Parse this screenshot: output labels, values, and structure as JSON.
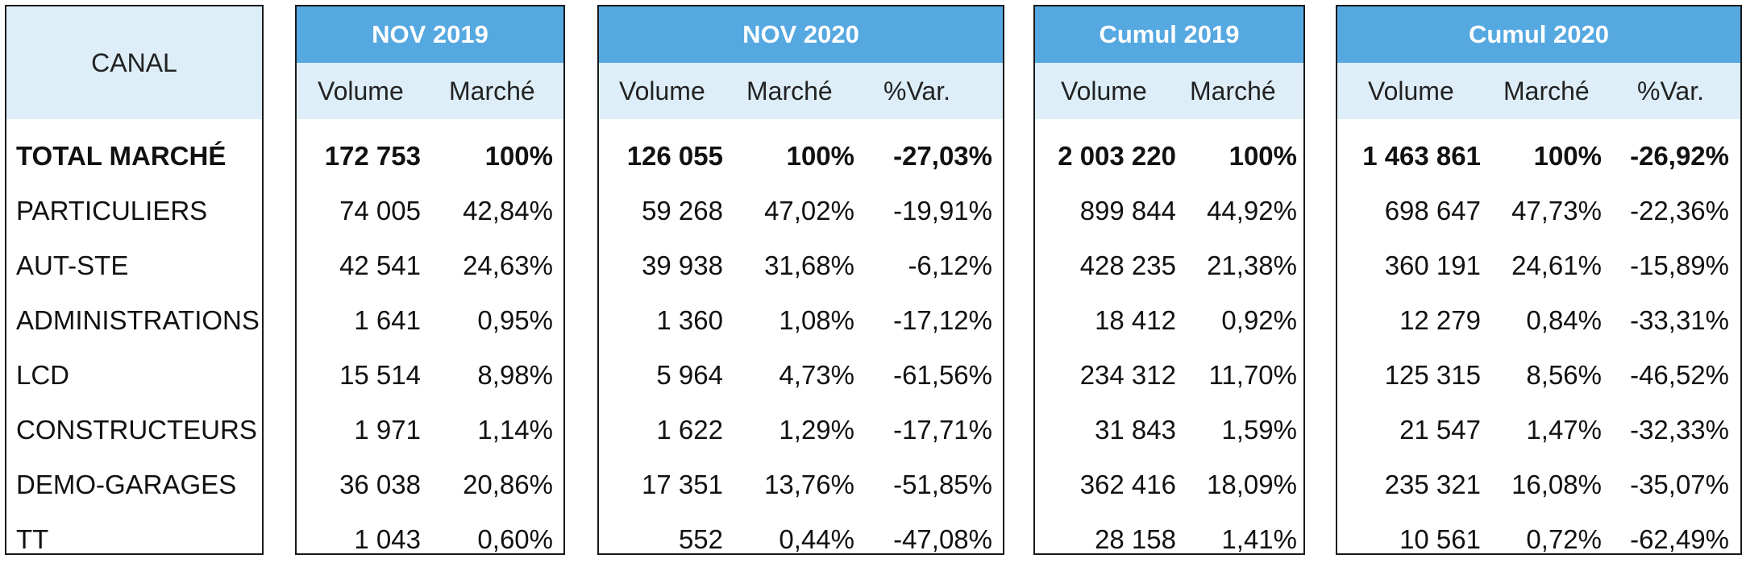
{
  "canal_header": "CANAL",
  "row_labels": [
    "TOTAL MARCHÉ",
    "PARTICULIERS",
    "AUT-STE",
    "ADMINISTRATIONS",
    "LCD",
    "CONSTRUCTEURS",
    "DEMO-GARAGES",
    "TT"
  ],
  "col_labels": {
    "volume": "Volume",
    "marche": "Marché",
    "var": "%Var."
  },
  "colors": {
    "header_blue": "#55a8e0",
    "subheader_light": "#ddeef8",
    "border": "#1a1a1a"
  },
  "groups": [
    {
      "title": "NOV 2019",
      "volume": [
        "172 753",
        "74 005",
        "42 541",
        "1 641",
        "15 514",
        "1 971",
        "36 038",
        "1 043"
      ],
      "marche": [
        "100%",
        "42,84%",
        "24,63%",
        "0,95%",
        "8,98%",
        "1,14%",
        "20,86%",
        "0,60%"
      ]
    },
    {
      "title": "NOV 2020",
      "volume": [
        "126 055",
        "59 268",
        "39 938",
        "1 360",
        "5 964",
        "1 622",
        "17 351",
        "552"
      ],
      "marche": [
        "100%",
        "47,02%",
        "31,68%",
        "1,08%",
        "4,73%",
        "1,29%",
        "13,76%",
        "0,44%"
      ],
      "var": [
        "-27,03%",
        "-19,91%",
        "-6,12%",
        "-17,12%",
        "-61,56%",
        "-17,71%",
        "-51,85%",
        "-47,08%"
      ]
    },
    {
      "title": "Cumul 2019",
      "volume": [
        "2 003 220",
        "899 844",
        "428 235",
        "18 412",
        "234 312",
        "31 843",
        "362 416",
        "28 158"
      ],
      "marche": [
        "100%",
        "44,92%",
        "21,38%",
        "0,92%",
        "11,70%",
        "1,59%",
        "18,09%",
        "1,41%"
      ]
    },
    {
      "title": "Cumul 2020",
      "volume": [
        "1 463 861",
        "698 647",
        "360 191",
        "12 279",
        "125 315",
        "21 547",
        "235 321",
        "10 561"
      ],
      "marche": [
        "100%",
        "47,73%",
        "24,61%",
        "0,84%",
        "8,56%",
        "1,47%",
        "16,08%",
        "0,72%"
      ],
      "var": [
        "-26,92%",
        "-22,36%",
        "-15,89%",
        "-33,31%",
        "-46,52%",
        "-32,33%",
        "-35,07%",
        "-62,49%"
      ]
    }
  ]
}
